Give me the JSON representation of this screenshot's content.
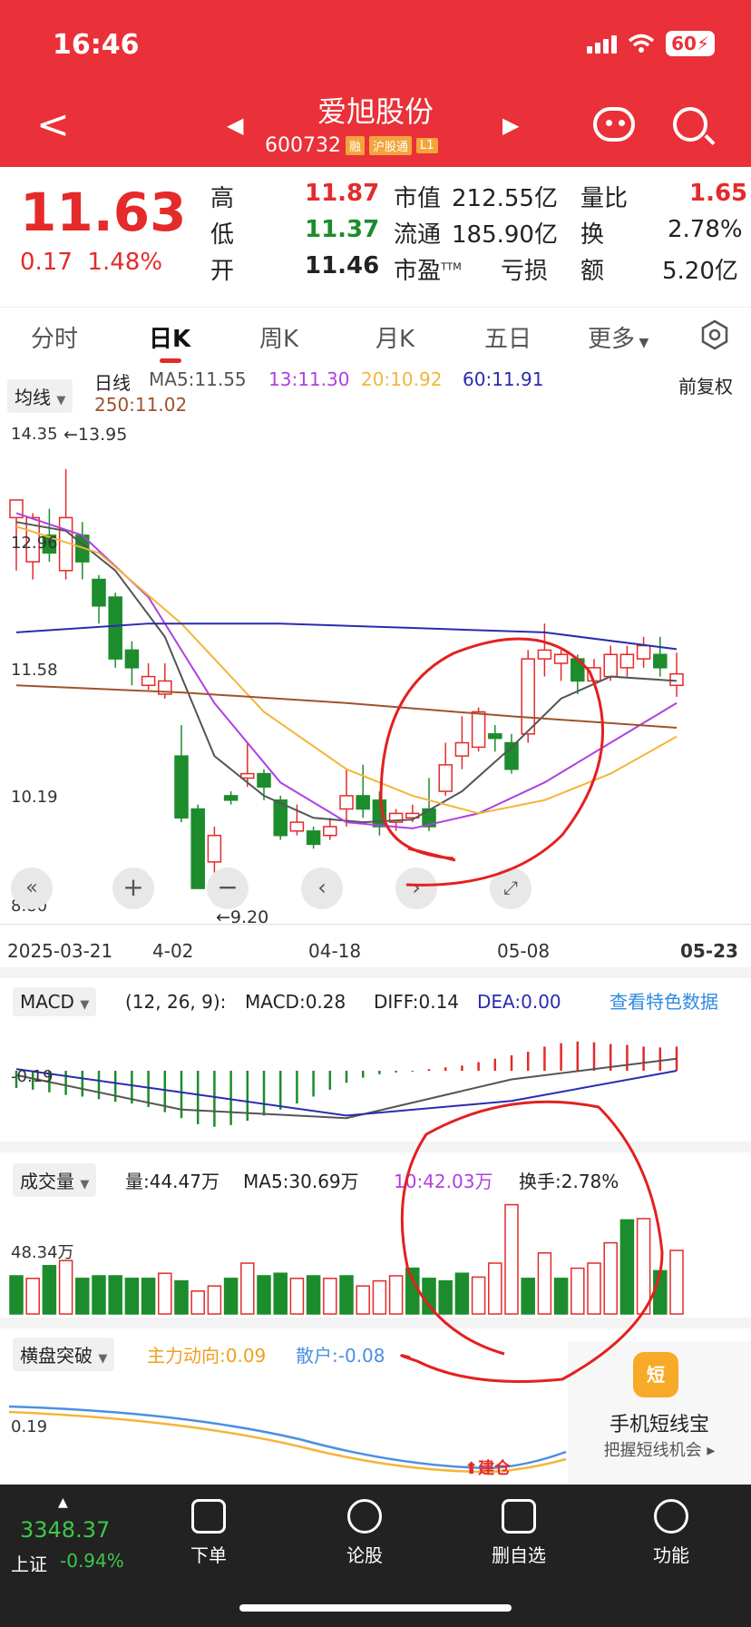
{
  "status": {
    "time": "16:46",
    "battery": "60"
  },
  "header": {
    "title": "爱旭股份",
    "code": "600732",
    "tags": [
      "融",
      "沪股通",
      "L1"
    ]
  },
  "quote": {
    "price": "11.63",
    "change": "0.17",
    "change_pct": "1.48%",
    "fields": [
      {
        "label": "高",
        "value": "11.87",
        "tone": "red"
      },
      {
        "label": "低",
        "value": "11.37",
        "tone": "green"
      },
      {
        "label": "开",
        "value": "11.46",
        "tone": "dark"
      },
      {
        "label": "市值",
        "value": "212.55亿"
      },
      {
        "label": "流通",
        "value": "185.90亿"
      },
      {
        "label": "市盈",
        "label_sup": "TTM",
        "value": "亏损"
      },
      {
        "label": "量比",
        "value": "1.65",
        "tone": "red"
      },
      {
        "label": "换",
        "value": "2.78%"
      },
      {
        "label": "额",
        "value": "5.20亿"
      }
    ]
  },
  "tabs": [
    "分时",
    "日K",
    "周K",
    "月K",
    "五日",
    "更多"
  ],
  "active_tab": "日K",
  "kline_legend": {
    "selector": "均线",
    "period": "日线",
    "ma5": "MA5:11.55",
    "ma13": "13:11.30",
    "ma20": "20:10.92",
    "ma60": "60:11.91",
    "ma250": "250:11.02",
    "adjust": "前复权",
    "colors": {
      "ma5": "#555555",
      "ma13": "#b040e0",
      "ma20": "#f4b53a",
      "ma60": "#2b2bb0",
      "ma250": "#a0522d"
    }
  },
  "kline_axis": {
    "y_ticks": [
      "14.35",
      "12.96",
      "11.58",
      "10.19",
      "8.80"
    ],
    "high_mark": "←13.95",
    "low_mark": "←9.20",
    "x_ticks": [
      "2025-03-21",
      "4-02",
      "04-18",
      "05-08",
      "05-23"
    ]
  },
  "macd": {
    "selector": "MACD",
    "params": "(12, 26, 9):",
    "macd": "MACD:0.28",
    "diff": "DIFF:0.14",
    "dea": "DEA:0.00",
    "link": "查看特色数据",
    "y_tick": "-0.19"
  },
  "volume": {
    "selector": "成交量",
    "vol": "量:44.47万",
    "ma5": "MA5:30.69万",
    "ma10": "10:42.03万",
    "turnover": "换手:2.78%",
    "y_tick": "48.34万"
  },
  "breakout": {
    "selector": "横盘突破",
    "main": "主力动向:0.09",
    "retail": "散户:-0.08",
    "y_tick": "0.19",
    "signal": "建仓"
  },
  "promo": {
    "title": "手机短线宝",
    "subtitle": "把握短线机会 ▸",
    "badge": "短"
  },
  "index": {
    "value": "3348.37",
    "name": "上证",
    "pct": "-0.94%"
  },
  "nav": [
    "下单",
    "论股",
    "删自选",
    "功能"
  ],
  "chart_data": [
    {
      "type": "candlestick",
      "ylim": [
        8.8,
        14.35
      ],
      "x_ticks": [
        "2025-03-21",
        "4-02",
        "04-18",
        "05-08",
        "05-23"
      ],
      "candles": [
        [
          13.4,
          13.6,
          13.55,
          12.8
        ],
        [
          12.9,
          13.4,
          13.45,
          12.7
        ],
        [
          13.2,
          13.0,
          13.5,
          12.9
        ],
        [
          12.8,
          13.4,
          13.95,
          12.7
        ],
        [
          13.2,
          12.9,
          13.35,
          12.7
        ],
        [
          12.7,
          12.4,
          12.75,
          12.2
        ],
        [
          12.5,
          11.8,
          12.55,
          11.7
        ],
        [
          11.9,
          11.7,
          12.0,
          11.5
        ],
        [
          11.5,
          11.6,
          11.75,
          11.45
        ],
        [
          11.4,
          11.55,
          11.75,
          11.35
        ],
        [
          10.7,
          10.0,
          11.05,
          9.95
        ],
        [
          10.1,
          9.2,
          10.15,
          9.2
        ],
        [
          9.5,
          9.8,
          9.9,
          9.2
        ],
        [
          10.25,
          10.2,
          10.3,
          10.15
        ],
        [
          10.45,
          10.5,
          10.85,
          10.35
        ],
        [
          10.5,
          10.35,
          10.55,
          10.2
        ],
        [
          10.2,
          9.8,
          10.25,
          9.75
        ],
        [
          9.85,
          9.95,
          10.15,
          9.8
        ],
        [
          9.85,
          9.7,
          9.9,
          9.65
        ],
        [
          9.8,
          9.9,
          10.0,
          9.75
        ],
        [
          10.1,
          10.25,
          10.55,
          9.9
        ],
        [
          10.25,
          10.1,
          10.6,
          10.0
        ],
        [
          10.2,
          9.9,
          10.3,
          9.8
        ],
        [
          9.95,
          10.05,
          10.1,
          9.85
        ],
        [
          10.0,
          10.05,
          10.15,
          9.95
        ],
        [
          10.1,
          9.9,
          10.45,
          9.85
        ],
        [
          10.3,
          10.6,
          10.85,
          10.25
        ],
        [
          10.7,
          10.85,
          11.15,
          10.55
        ],
        [
          10.8,
          11.2,
          11.25,
          10.75
        ],
        [
          10.95,
          10.9,
          11.05,
          10.75
        ],
        [
          10.85,
          10.55,
          10.95,
          10.5
        ],
        [
          10.95,
          11.8,
          11.9,
          10.85
        ],
        [
          11.8,
          11.9,
          12.2,
          11.6
        ],
        [
          11.75,
          11.85,
          11.9,
          11.55
        ],
        [
          11.8,
          11.55,
          11.85,
          11.4
        ],
        [
          11.55,
          11.7,
          11.8,
          11.5
        ],
        [
          11.6,
          11.85,
          11.95,
          11.55
        ],
        [
          11.7,
          11.85,
          11.95,
          11.6
        ],
        [
          11.8,
          11.95,
          12.05,
          11.7
        ],
        [
          11.85,
          11.7,
          12.05,
          11.6
        ],
        [
          11.5,
          11.63,
          11.87,
          11.37
        ]
      ],
      "ma_series": {
        "ma5": [
          [
            0,
            13.35
          ],
          [
            3,
            13.25
          ],
          [
            6,
            12.8
          ],
          [
            9,
            12.05
          ],
          [
            12,
            10.7
          ],
          [
            15,
            10.25
          ],
          [
            18,
            10.0
          ],
          [
            21,
            9.95
          ],
          [
            24,
            9.98
          ],
          [
            27,
            10.3
          ],
          [
            30,
            10.8
          ],
          [
            33,
            11.35
          ],
          [
            36,
            11.6
          ],
          [
            40,
            11.55
          ]
        ],
        "ma13": [
          [
            0,
            13.45
          ],
          [
            4,
            13.2
          ],
          [
            8,
            12.5
          ],
          [
            12,
            11.3
          ],
          [
            16,
            10.4
          ],
          [
            20,
            9.95
          ],
          [
            24,
            9.88
          ],
          [
            28,
            10.05
          ],
          [
            32,
            10.4
          ],
          [
            36,
            10.85
          ],
          [
            40,
            11.3
          ]
        ],
        "ma20": [
          [
            0,
            13.3
          ],
          [
            5,
            13.0
          ],
          [
            10,
            12.2
          ],
          [
            15,
            11.2
          ],
          [
            20,
            10.55
          ],
          [
            24,
            10.25
          ],
          [
            28,
            10.05
          ],
          [
            32,
            10.2
          ],
          [
            36,
            10.5
          ],
          [
            40,
            10.92
          ]
        ],
        "ma60": [
          [
            0,
            12.1
          ],
          [
            8,
            12.2
          ],
          [
            16,
            12.2
          ],
          [
            24,
            12.15
          ],
          [
            32,
            12.1
          ],
          [
            40,
            11.91
          ]
        ],
        "ma250": [
          [
            0,
            11.5
          ],
          [
            10,
            11.42
          ],
          [
            20,
            11.3
          ],
          [
            30,
            11.15
          ],
          [
            40,
            11.02
          ]
        ]
      }
    },
    {
      "type": "bar",
      "name": "MACD",
      "values": [
        -0.2,
        -0.22,
        -0.25,
        -0.28,
        -0.3,
        -0.33,
        -0.36,
        -0.38,
        -0.42,
        -0.48,
        -0.55,
        -0.62,
        -0.65,
        -0.63,
        -0.58,
        -0.52,
        -0.45,
        -0.38,
        -0.3,
        -0.22,
        -0.14,
        -0.08,
        -0.04,
        -0.02,
        -0.01,
        0.02,
        0.04,
        0.06,
        0.1,
        0.14,
        0.18,
        0.22,
        0.28,
        0.32,
        0.34,
        0.33,
        0.31,
        0.3,
        0.28,
        0.27,
        0.28
      ],
      "diff": [
        [
          0,
          -0.05
        ],
        [
          10,
          -0.45
        ],
        [
          20,
          -0.55
        ],
        [
          30,
          -0.1
        ],
        [
          40,
          0.14
        ]
      ],
      "dea": [
        [
          0,
          0.02
        ],
        [
          10,
          -0.25
        ],
        [
          20,
          -0.52
        ],
        [
          30,
          -0.35
        ],
        [
          40,
          0.0
        ]
      ]
    },
    {
      "type": "bar",
      "name": "成交量",
      "values": [
        30,
        28,
        38,
        42,
        28,
        30,
        30,
        28,
        28,
        32,
        26,
        18,
        22,
        28,
        40,
        30,
        32,
        28,
        30,
        28,
        30,
        22,
        26,
        30,
        36,
        28,
        26,
        32,
        29,
        40,
        86,
        28,
        48,
        28,
        36,
        40,
        56,
        74,
        75,
        34,
        50
      ],
      "up": [
        false,
        true,
        false,
        true,
        false,
        false,
        false,
        false,
        false,
        true,
        false,
        true,
        true,
        false,
        true,
        false,
        false,
        true,
        false,
        true,
        false,
        true,
        true,
        true,
        false,
        false,
        false,
        false,
        true,
        true,
        true,
        false,
        true,
        false,
        true,
        true,
        true,
        false,
        true,
        false,
        true
      ],
      "ylim": [
        0,
        100
      ]
    }
  ]
}
